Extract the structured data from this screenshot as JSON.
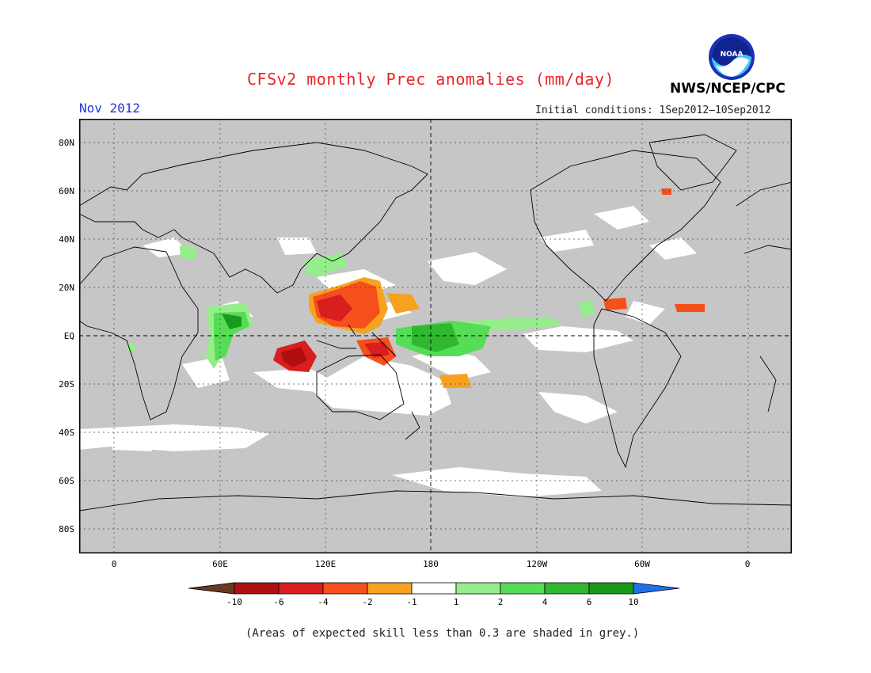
{
  "header": {
    "title": "CFSv2 monthly Prec anomalies (mm/day)",
    "month": "Nov 2012",
    "agency": "NWS/NCEP/CPC",
    "initial_conditions": "Initial conditions: 1Sep2012—10Sep2012",
    "logo_text": "NOAA"
  },
  "axes": {
    "lat_labels": [
      "80N",
      "60N",
      "40N",
      "20N",
      "EQ",
      "20S",
      "40S",
      "60S",
      "80S"
    ],
    "lon_labels": [
      "0",
      "60E",
      "120E",
      "180",
      "120W",
      "60W",
      "0"
    ]
  },
  "colorbar": {
    "labels": [
      "-10",
      "-6",
      "-4",
      "-2",
      "-1",
      "1",
      "2",
      "4",
      "6",
      "10"
    ],
    "colors": [
      "#6b3a22",
      "#b00f0f",
      "#d81e1e",
      "#f5501c",
      "#f7a21f",
      "#ffffff",
      "#95ee8b",
      "#55dd55",
      "#30b830",
      "#1a9a1a",
      "#2270e8"
    ]
  },
  "footnote": "(Areas of expected skill less than 0.3 are shaded in grey.)"
}
